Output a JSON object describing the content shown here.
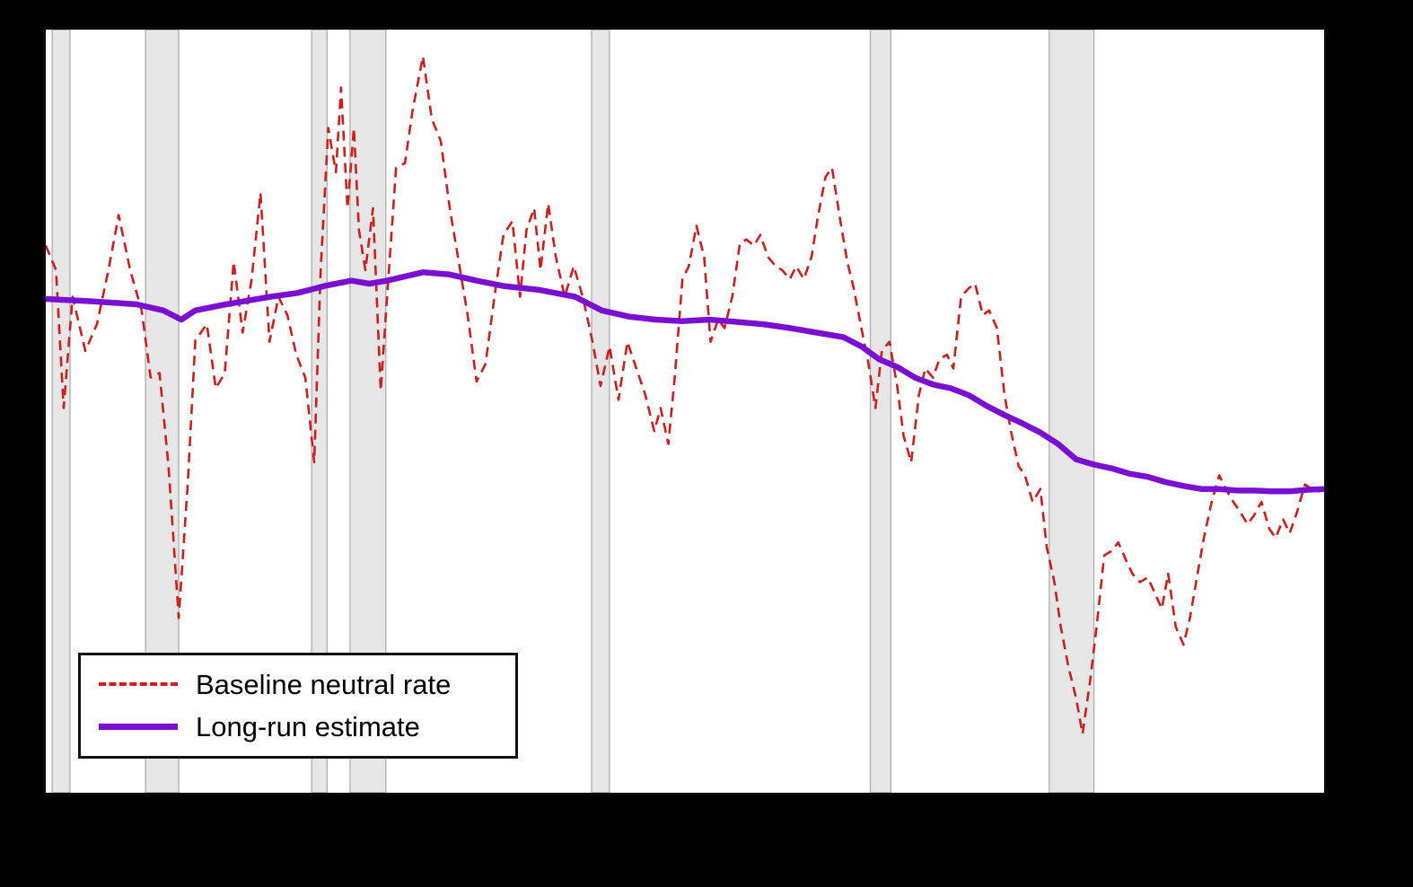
{
  "figure": {
    "background_color": "#000000",
    "plot_background_color": "#ffffff",
    "plot_border_color": "#0a0a0a"
  },
  "legend": {
    "entries": [
      {
        "label": "Baseline neutral rate"
      },
      {
        "label": "Long-run estimate"
      }
    ]
  },
  "chart_data": {
    "type": "line",
    "title": "",
    "xlabel": "",
    "ylabel": "",
    "axis_tick_labels_visible": false,
    "grid": false,
    "legend_position": "lower-left",
    "xlim": [
      0,
      1
    ],
    "ylim": [
      0,
      10
    ],
    "band_color": "#e6e6e6",
    "band_edge_color": "#a8a8a8",
    "recession_bands_x": [
      [
        0.005,
        0.019
      ],
      [
        0.078,
        0.104
      ],
      [
        0.208,
        0.22
      ],
      [
        0.238,
        0.266
      ],
      [
        0.427,
        0.441
      ],
      [
        0.645,
        0.661
      ],
      [
        0.785,
        0.82
      ]
    ],
    "series": [
      {
        "name": "Baseline neutral rate",
        "color": "#cc1f1d",
        "dash": "11 7",
        "width": 2.6,
        "points": [
          [
            0.0,
            7.17
          ],
          [
            0.008,
            6.85
          ],
          [
            0.014,
            5.04
          ],
          [
            0.021,
            6.5
          ],
          [
            0.031,
            5.79
          ],
          [
            0.04,
            6.14
          ],
          [
            0.049,
            6.85
          ],
          [
            0.057,
            7.57
          ],
          [
            0.066,
            6.85
          ],
          [
            0.075,
            6.32
          ],
          [
            0.082,
            5.44
          ],
          [
            0.089,
            5.5
          ],
          [
            0.096,
            4.28
          ],
          [
            0.104,
            2.29
          ],
          [
            0.111,
            4.04
          ],
          [
            0.117,
            5.93
          ],
          [
            0.126,
            6.14
          ],
          [
            0.133,
            5.3
          ],
          [
            0.14,
            5.5
          ],
          [
            0.147,
            6.96
          ],
          [
            0.154,
            6.03
          ],
          [
            0.161,
            6.73
          ],
          [
            0.168,
            7.86
          ],
          [
            0.175,
            5.91
          ],
          [
            0.182,
            6.5
          ],
          [
            0.189,
            6.26
          ],
          [
            0.196,
            5.74
          ],
          [
            0.203,
            5.44
          ],
          [
            0.21,
            4.33
          ],
          [
            0.215,
            6.85
          ],
          [
            0.221,
            8.71
          ],
          [
            0.227,
            8.13
          ],
          [
            0.231,
            9.24
          ],
          [
            0.236,
            7.66
          ],
          [
            0.241,
            8.71
          ],
          [
            0.245,
            7.37
          ],
          [
            0.25,
            6.85
          ],
          [
            0.256,
            7.66
          ],
          [
            0.262,
            5.27
          ],
          [
            0.267,
            6.5
          ],
          [
            0.274,
            8.19
          ],
          [
            0.281,
            8.25
          ],
          [
            0.287,
            8.95
          ],
          [
            0.295,
            9.65
          ],
          [
            0.302,
            8.83
          ],
          [
            0.309,
            8.54
          ],
          [
            0.316,
            7.66
          ],
          [
            0.323,
            6.96
          ],
          [
            0.33,
            6.26
          ],
          [
            0.337,
            5.39
          ],
          [
            0.344,
            5.62
          ],
          [
            0.351,
            6.5
          ],
          [
            0.358,
            7.31
          ],
          [
            0.365,
            7.49
          ],
          [
            0.371,
            6.5
          ],
          [
            0.376,
            7.37
          ],
          [
            0.382,
            7.66
          ],
          [
            0.387,
            6.85
          ],
          [
            0.393,
            7.72
          ],
          [
            0.399,
            7.02
          ],
          [
            0.406,
            6.5
          ],
          [
            0.413,
            6.9
          ],
          [
            0.42,
            6.5
          ],
          [
            0.427,
            5.97
          ],
          [
            0.434,
            5.33
          ],
          [
            0.441,
            5.85
          ],
          [
            0.448,
            5.15
          ],
          [
            0.455,
            5.91
          ],
          [
            0.462,
            5.56
          ],
          [
            0.469,
            5.21
          ],
          [
            0.476,
            4.74
          ],
          [
            0.481,
            5.04
          ],
          [
            0.487,
            4.57
          ],
          [
            0.492,
            5.44
          ],
          [
            0.498,
            6.73
          ],
          [
            0.503,
            6.9
          ],
          [
            0.509,
            7.43
          ],
          [
            0.515,
            7.02
          ],
          [
            0.52,
            5.91
          ],
          [
            0.526,
            6.2
          ],
          [
            0.531,
            6.09
          ],
          [
            0.537,
            6.5
          ],
          [
            0.543,
            7.2
          ],
          [
            0.548,
            7.25
          ],
          [
            0.554,
            7.17
          ],
          [
            0.559,
            7.31
          ],
          [
            0.565,
            7.02
          ],
          [
            0.571,
            6.9
          ],
          [
            0.576,
            6.85
          ],
          [
            0.582,
            6.73
          ],
          [
            0.587,
            6.9
          ],
          [
            0.593,
            6.73
          ],
          [
            0.599,
            7.02
          ],
          [
            0.604,
            7.55
          ],
          [
            0.61,
            8.07
          ],
          [
            0.615,
            8.19
          ],
          [
            0.621,
            7.55
          ],
          [
            0.627,
            6.96
          ],
          [
            0.632,
            6.61
          ],
          [
            0.638,
            6.09
          ],
          [
            0.643,
            5.68
          ],
          [
            0.649,
            5.04
          ],
          [
            0.654,
            5.79
          ],
          [
            0.66,
            5.91
          ],
          [
            0.666,
            5.33
          ],
          [
            0.671,
            4.68
          ],
          [
            0.677,
            4.33
          ],
          [
            0.683,
            5.21
          ],
          [
            0.688,
            5.56
          ],
          [
            0.694,
            5.44
          ],
          [
            0.699,
            5.68
          ],
          [
            0.705,
            5.74
          ],
          [
            0.71,
            5.56
          ],
          [
            0.716,
            6.5
          ],
          [
            0.722,
            6.61
          ],
          [
            0.727,
            6.67
          ],
          [
            0.733,
            6.26
          ],
          [
            0.738,
            6.32
          ],
          [
            0.744,
            6.09
          ],
          [
            0.75,
            5.21
          ],
          [
            0.755,
            4.74
          ],
          [
            0.761,
            4.28
          ],
          [
            0.766,
            4.16
          ],
          [
            0.772,
            3.81
          ],
          [
            0.778,
            3.98
          ],
          [
            0.783,
            3.22
          ],
          [
            0.789,
            2.76
          ],
          [
            0.794,
            2.17
          ],
          [
            0.8,
            1.65
          ],
          [
            0.806,
            1.24
          ],
          [
            0.811,
            0.77
          ],
          [
            0.817,
            1.47
          ],
          [
            0.822,
            2.17
          ],
          [
            0.828,
            3.11
          ],
          [
            0.834,
            3.17
          ],
          [
            0.839,
            3.28
          ],
          [
            0.845,
            3.05
          ],
          [
            0.85,
            2.87
          ],
          [
            0.856,
            2.76
          ],
          [
            0.862,
            2.82
          ],
          [
            0.867,
            2.64
          ],
          [
            0.873,
            2.41
          ],
          [
            0.878,
            2.87
          ],
          [
            0.884,
            2.17
          ],
          [
            0.89,
            1.94
          ],
          [
            0.895,
            2.29
          ],
          [
            0.901,
            2.87
          ],
          [
            0.906,
            3.34
          ],
          [
            0.912,
            3.81
          ],
          [
            0.918,
            4.16
          ],
          [
            0.923,
            3.98
          ],
          [
            0.929,
            3.81
          ],
          [
            0.934,
            3.69
          ],
          [
            0.94,
            3.52
          ],
          [
            0.945,
            3.63
          ],
          [
            0.951,
            3.81
          ],
          [
            0.957,
            3.46
          ],
          [
            0.962,
            3.34
          ],
          [
            0.968,
            3.58
          ],
          [
            0.973,
            3.4
          ],
          [
            0.979,
            3.69
          ],
          [
            0.985,
            4.04
          ],
          [
            0.99,
            3.98
          ],
          [
            0.996,
            3.95
          ],
          [
            1.0,
            3.98
          ]
        ]
      },
      {
        "name": "Long-run estimate",
        "color": "#7a0fd2",
        "dash": null,
        "width": 6.5,
        "points": [
          [
            0.0,
            6.47
          ],
          [
            0.036,
            6.44
          ],
          [
            0.071,
            6.4
          ],
          [
            0.092,
            6.32
          ],
          [
            0.106,
            6.2
          ],
          [
            0.117,
            6.32
          ],
          [
            0.141,
            6.4
          ],
          [
            0.176,
            6.5
          ],
          [
            0.197,
            6.55
          ],
          [
            0.218,
            6.64
          ],
          [
            0.239,
            6.71
          ],
          [
            0.253,
            6.67
          ],
          [
            0.267,
            6.71
          ],
          [
            0.295,
            6.82
          ],
          [
            0.316,
            6.79
          ],
          [
            0.337,
            6.71
          ],
          [
            0.358,
            6.64
          ],
          [
            0.386,
            6.59
          ],
          [
            0.414,
            6.5
          ],
          [
            0.435,
            6.32
          ],
          [
            0.456,
            6.24
          ],
          [
            0.477,
            6.2
          ],
          [
            0.498,
            6.18
          ],
          [
            0.519,
            6.2
          ],
          [
            0.54,
            6.17
          ],
          [
            0.561,
            6.14
          ],
          [
            0.582,
            6.09
          ],
          [
            0.603,
            6.03
          ],
          [
            0.624,
            5.97
          ],
          [
            0.638,
            5.85
          ],
          [
            0.652,
            5.68
          ],
          [
            0.666,
            5.58
          ],
          [
            0.68,
            5.44
          ],
          [
            0.694,
            5.35
          ],
          [
            0.708,
            5.3
          ],
          [
            0.722,
            5.21
          ],
          [
            0.736,
            5.07
          ],
          [
            0.75,
            4.95
          ],
          [
            0.764,
            4.84
          ],
          [
            0.778,
            4.72
          ],
          [
            0.792,
            4.57
          ],
          [
            0.806,
            4.37
          ],
          [
            0.82,
            4.3
          ],
          [
            0.834,
            4.25
          ],
          [
            0.848,
            4.18
          ],
          [
            0.862,
            4.14
          ],
          [
            0.876,
            4.07
          ],
          [
            0.89,
            4.02
          ],
          [
            0.904,
            3.98
          ],
          [
            0.918,
            3.98
          ],
          [
            0.932,
            3.96
          ],
          [
            0.945,
            3.96
          ],
          [
            0.959,
            3.95
          ],
          [
            0.973,
            3.95
          ],
          [
            0.987,
            3.97
          ],
          [
            1.0,
            3.98
          ]
        ]
      }
    ]
  }
}
